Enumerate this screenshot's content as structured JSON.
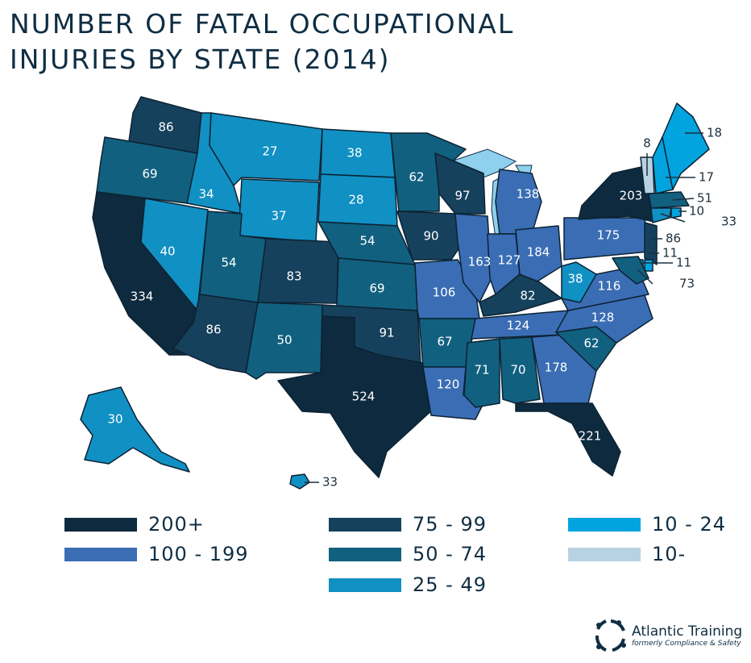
{
  "title_line1": "NUMBER OF FATAL OCCUPATIONAL",
  "title_line2": "INJURIES BY STATE (2014)",
  "chart_data": {
    "type": "choropleth",
    "title": "NUMBER OF FATAL OCCUPATIONAL INJURIES BY STATE (2014)",
    "bins": [
      {
        "label": "200+",
        "min": 200,
        "color": "#0e2a3e"
      },
      {
        "label": "100 - 199",
        "min": 100,
        "max": 199,
        "color": "#3a6db4"
      },
      {
        "label": "75 - 99",
        "min": 75,
        "max": 99,
        "color": "#16415c"
      },
      {
        "label": "50 - 74",
        "min": 50,
        "max": 74,
        "color": "#12607f"
      },
      {
        "label": "25 - 49",
        "min": 25,
        "max": 49,
        "color": "#1190c3"
      },
      {
        "label": "10 - 24",
        "min": 10,
        "max": 24,
        "color": "#02a4df"
      },
      {
        "label": "10-",
        "max": 9,
        "color": "#b8d2e3"
      }
    ],
    "states": [
      {
        "id": "WA",
        "value": 86
      },
      {
        "id": "OR",
        "value": 69
      },
      {
        "id": "CA",
        "value": 334
      },
      {
        "id": "NV",
        "value": 40
      },
      {
        "id": "ID",
        "value": 34
      },
      {
        "id": "MT",
        "value": 27
      },
      {
        "id": "WY",
        "value": 37
      },
      {
        "id": "UT",
        "value": 54
      },
      {
        "id": "CO",
        "value": 83
      },
      {
        "id": "AZ",
        "value": 86
      },
      {
        "id": "NM",
        "value": 50
      },
      {
        "id": "ND",
        "value": 38
      },
      {
        "id": "SD",
        "value": 28
      },
      {
        "id": "NE",
        "value": 54
      },
      {
        "id": "KS",
        "value": 69
      },
      {
        "id": "OK",
        "value": 91
      },
      {
        "id": "TX",
        "value": 524
      },
      {
        "id": "MN",
        "value": 62
      },
      {
        "id": "IA",
        "value": 90
      },
      {
        "id": "MO",
        "value": 106
      },
      {
        "id": "AR",
        "value": 67
      },
      {
        "id": "LA",
        "value": 120
      },
      {
        "id": "WI",
        "value": 97
      },
      {
        "id": "IL",
        "value": 163
      },
      {
        "id": "MI",
        "value": 138
      },
      {
        "id": "IN",
        "value": 127
      },
      {
        "id": "OH",
        "value": 184
      },
      {
        "id": "KY",
        "value": 82
      },
      {
        "id": "TN",
        "value": 124
      },
      {
        "id": "MS",
        "value": 71
      },
      {
        "id": "AL",
        "value": 70
      },
      {
        "id": "GA",
        "value": 178
      },
      {
        "id": "FL",
        "value": 221
      },
      {
        "id": "SC",
        "value": 62
      },
      {
        "id": "NC",
        "value": 128
      },
      {
        "id": "VA",
        "value": 116
      },
      {
        "id": "WV",
        "value": 38
      },
      {
        "id": "PA",
        "value": 175
      },
      {
        "id": "NY",
        "value": 203
      },
      {
        "id": "VT",
        "value": 8
      },
      {
        "id": "NH",
        "value": 17
      },
      {
        "id": "ME",
        "value": 18
      },
      {
        "id": "MA",
        "value": 51
      },
      {
        "id": "RI",
        "value": 10
      },
      {
        "id": "CT",
        "value": 33
      },
      {
        "id": "NJ",
        "value": 86
      },
      {
        "id": "DE",
        "value": 11
      },
      {
        "id": "DC",
        "value": 11
      },
      {
        "id": "MD",
        "value": 73
      },
      {
        "id": "AK",
        "value": 30
      },
      {
        "id": "HI",
        "value": 33
      }
    ],
    "lake_color": "#8fd0ee"
  },
  "logo": {
    "name": "Atlantic Training",
    "tagline": "formerly Compliance & Safety"
  }
}
